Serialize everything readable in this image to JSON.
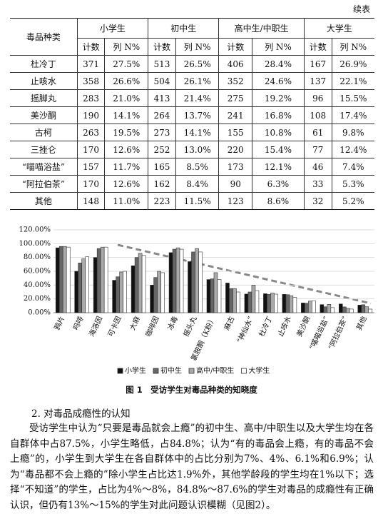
{
  "continued_label": "续表",
  "table": {
    "header": {
      "first": "毒品种类",
      "groups": [
        "小学生",
        "初中生",
        "高中生/中职生",
        "大学生"
      ],
      "subheaders": [
        "计数",
        "列 N%",
        "计数",
        "列 N%",
        "计数",
        "列 N%",
        "计数",
        "列 N%"
      ]
    },
    "rows": [
      [
        "杜冷丁",
        "371",
        "27.5%",
        "513",
        "26.5%",
        "406",
        "28.4%",
        "167",
        "26.9%"
      ],
      [
        "止咳水",
        "358",
        "26.6%",
        "504",
        "26.1%",
        "352",
        "24.6%",
        "137",
        "22.1%"
      ],
      [
        "摇脚丸",
        "283",
        "21.0%",
        "413",
        "21.4%",
        "275",
        "19.2%",
        "96",
        "15.5%"
      ],
      [
        "美沙酮",
        "190",
        "14.1%",
        "264",
        "13.7%",
        "241",
        "16.8%",
        "108",
        "17.4%"
      ],
      [
        "古柯",
        "263",
        "19.5%",
        "273",
        "14.1%",
        "155",
        "10.8%",
        "61",
        "9.8%"
      ],
      [
        "三挫仑",
        "170",
        "12.6%",
        "252",
        "13.0%",
        "220",
        "15.4%",
        "77",
        "12.4%"
      ],
      [
        "“喵喵浴盐”",
        "157",
        "11.7%",
        "165",
        "8.5%",
        "173",
        "12.1%",
        "46",
        "7.4%"
      ],
      [
        "“阿拉伯茶”",
        "170",
        "12.6%",
        "162",
        "8.4%",
        "90",
        "6.3%",
        "33",
        "5.3%"
      ],
      [
        "其他",
        "148",
        "11.0%",
        "223",
        "11.5%",
        "123",
        "8.6%",
        "32",
        "5.2%"
      ]
    ]
  },
  "chart_data": {
    "type": "bar",
    "categories": [
      "鸦片",
      "吗啡",
      "海洛因",
      "可卡因",
      "大麻",
      "咖啡因",
      "冰毒",
      "摇头丸",
      "氯胺酮（K粉）",
      "麻古",
      "“神仙水”",
      "杜冷丁",
      "止咳水",
      "美沙酮",
      "“喵喵浴盐”",
      "“阿拉伯茶”",
      "其他"
    ],
    "series": [
      {
        "name": "小学生",
        "color": "#111111",
        "values": [
          94,
          60,
          80,
          47,
          68,
          40,
          87,
          74,
          48,
          43,
          27,
          27.5,
          26.6,
          14.1,
          11.7,
          12.6,
          11.0
        ]
      },
      {
        "name": "初中生",
        "color": "#666666",
        "values": [
          96,
          72,
          93,
          52,
          80,
          51,
          92,
          88,
          49,
          35,
          30,
          26.5,
          26.1,
          13.7,
          8.5,
          8.4,
          11.5
        ]
      },
      {
        "name": "高中/中职生",
        "color": "#aaaaaa",
        "values": [
          96,
          78,
          95,
          59,
          86,
          60,
          94,
          93,
          58,
          35,
          40,
          28.4,
          24.6,
          16.8,
          12.1,
          6.3,
          8.6
        ]
      },
      {
        "name": "大学生",
        "color": "#ffffff",
        "values": [
          95,
          81,
          95,
          60,
          83,
          58,
          92,
          88,
          48,
          30,
          32,
          26.9,
          22.1,
          17.4,
          7.4,
          5.3,
          5.2
        ]
      }
    ],
    "ylim": [
      0,
      120
    ],
    "yticks": [
      {
        "value": 0,
        "label": "0.00%"
      },
      {
        "value": 20,
        "label": "20.00%"
      },
      {
        "value": 40,
        "label": "40.00%"
      },
      {
        "value": 60,
        "label": "60.00%"
      },
      {
        "value": 80,
        "label": "80.00%"
      },
      {
        "value": 100,
        "label": "100.00%"
      },
      {
        "value": 120,
        "label": "120.00%"
      }
    ],
    "grid": true
  },
  "figure_caption": "图 1　受访学生对毒品种类的知晓度",
  "section_heading": "2. 对毒品成瘾性的认知",
  "paragraph": "受访学生中认为“只要是毒品就会上瘾”的初中生、高中/中职生以及大学生均在各自群体中占87.5%，小学生略低，占84.8%；认为“有的毒品会上瘾，有的毒品不会上瘾”的，小学生到大学生在各自群体中的占比分别为7%、4%、6.1%和6.9%；认为“毒品都不会上瘾的”除小学生占比达1.9%外，其他学龄段的学生均在1%以下；选择“不知道”的学生，占比为4%～8%，84.8%～87.6%的学生对毒品的成瘾性有正确认识，但仍有13%～15%的学生对此问题认识模糊（见图2）。"
}
